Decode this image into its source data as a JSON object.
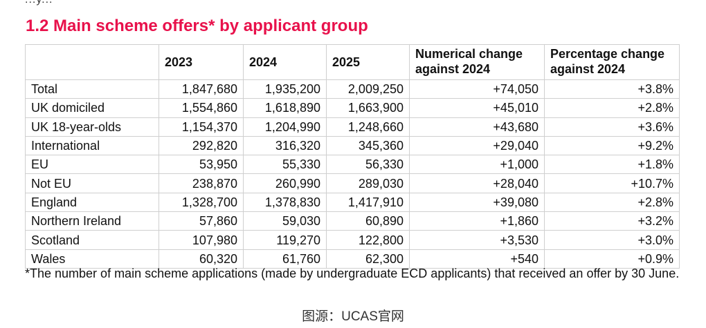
{
  "top_fragment": "...y...",
  "title": "1.2 Main scheme offers* by applicant group",
  "table": {
    "headers": [
      "",
      "2023",
      "2024",
      "2025",
      "Numerical change against 2024",
      "Percentage change against 2024"
    ],
    "rows": [
      [
        "Total",
        "1,847,680",
        "1,935,200",
        "2,009,250",
        "+74,050",
        "+3.8%"
      ],
      [
        "UK domiciled",
        "1,554,860",
        "1,618,890",
        "1,663,900",
        "+45,010",
        "+2.8%"
      ],
      [
        "UK 18-year-olds",
        "1,154,370",
        "1,204,990",
        "1,248,660",
        "+43,680",
        "+3.6%"
      ],
      [
        "International",
        "292,820",
        "316,320",
        "345,360",
        "+29,040",
        "+9.2%"
      ],
      [
        "EU",
        "53,950",
        "55,330",
        "56,330",
        "+1,000",
        "+1.8%"
      ],
      [
        "Not EU",
        "238,870",
        "260,990",
        "289,030",
        "+28,040",
        "+10.7%"
      ],
      [
        "England",
        "1,328,700",
        "1,378,830",
        "1,417,910",
        "+39,080",
        "+2.8%"
      ],
      [
        "Northern Ireland",
        "57,860",
        "59,030",
        "60,890",
        "+1,860",
        "+3.2%"
      ],
      [
        "Scotland",
        "107,980",
        "119,270",
        "122,800",
        "+3,530",
        "+3.0%"
      ],
      [
        "Wales",
        "60,320",
        "61,760",
        "62,300",
        "+540",
        "+0.9%"
      ]
    ]
  },
  "footnote": "*The number of main scheme applications (made by undergraduate ECD applicants) that received an offer by 30 June.",
  "source": "图源：UCAS官网",
  "colors": {
    "title": "#e8114b",
    "border": "#cfcfcf"
  }
}
